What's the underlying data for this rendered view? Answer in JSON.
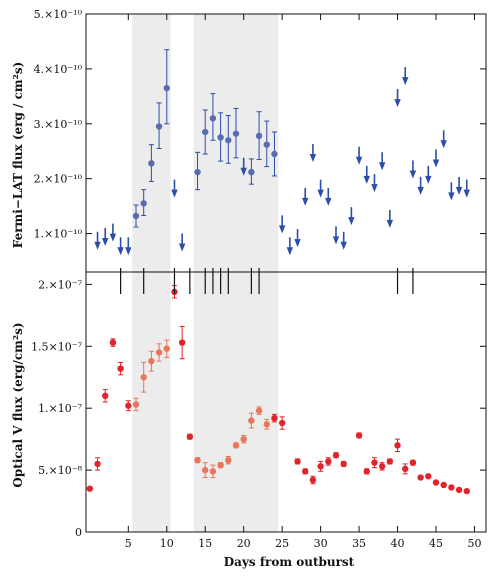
{
  "chart_data": [
    {
      "type": "scatter",
      "panel": "top",
      "ylabel": "Fermi−LAT flux (erg / cm²s)",
      "ylim": [
        3e-11,
        5e-10
      ],
      "xlim": [
        -0.5,
        51.5
      ],
      "yticks": [
        {
          "value": 1e-10,
          "label": "1.×10⁻¹⁰"
        },
        {
          "value": 2e-10,
          "label": "2.×10⁻¹⁰"
        },
        {
          "value": 3e-10,
          "label": "3.×10⁻¹⁰"
        },
        {
          "value": 4e-10,
          "label": "4.×10⁻¹⁰"
        },
        {
          "value": 5e-10,
          "label": "5.×10⁻¹⁰"
        }
      ],
      "shaded_regions": [
        [
          5.5,
          10.5
        ],
        [
          13.5,
          24.5
        ]
      ],
      "colors": {
        "points": "#5a6cb0",
        "upper_limits": "#2b4ea8",
        "shade": "#ececec"
      },
      "series": [
        {
          "kind": "detections",
          "points": [
            {
              "x": 6,
              "y": 1.32e-10,
              "lo": 1.12e-10,
              "hi": 1.52e-10
            },
            {
              "x": 7,
              "y": 1.55e-10,
              "lo": 1.33e-10,
              "hi": 1.8e-10
            },
            {
              "x": 8,
              "y": 2.28e-10,
              "lo": 1.95e-10,
              "hi": 2.62e-10
            },
            {
              "x": 9,
              "y": 2.95e-10,
              "lo": 2.55e-10,
              "hi": 3.38e-10
            },
            {
              "x": 10,
              "y": 3.65e-10,
              "lo": 3e-10,
              "hi": 4.35e-10
            },
            {
              "x": 14,
              "y": 2.12e-10,
              "lo": 1.8e-10,
              "hi": 2.48e-10
            },
            {
              "x": 15,
              "y": 2.85e-10,
              "lo": 2.45e-10,
              "hi": 3.25e-10
            },
            {
              "x": 16,
              "y": 3.1e-10,
              "lo": 2.7e-10,
              "hi": 3.55e-10
            },
            {
              "x": 17,
              "y": 2.75e-10,
              "lo": 2.32e-10,
              "hi": 3.2e-10
            },
            {
              "x": 18,
              "y": 2.7e-10,
              "lo": 2.28e-10,
              "hi": 3.15e-10
            },
            {
              "x": 19,
              "y": 2.82e-10,
              "lo": 2.38e-10,
              "hi": 3.28e-10
            },
            {
              "x": 21,
              "y": 2.12e-10,
              "lo": 1.9e-10,
              "hi": 2.36e-10
            },
            {
              "x": 22,
              "y": 2.78e-10,
              "lo": 2.35e-10,
              "hi": 3.22e-10
            },
            {
              "x": 23,
              "y": 2.62e-10,
              "lo": 2.22e-10,
              "hi": 3.05e-10
            },
            {
              "x": 24,
              "y": 2.45e-10,
              "lo": 2.05e-10,
              "hi": 2.85e-10
            }
          ]
        },
        {
          "kind": "upper_limits",
          "points": [
            {
              "x": 1,
              "y": 8.5e-11
            },
            {
              "x": 2,
              "y": 9.2e-11
            },
            {
              "x": 3,
              "y": 1e-10
            },
            {
              "x": 4,
              "y": 7.5e-11
            },
            {
              "x": 5,
              "y": 7.5e-11
            },
            {
              "x": 11,
              "y": 1.8e-10
            },
            {
              "x": 12,
              "y": 8.2e-11
            },
            {
              "x": 20,
              "y": 2.2e-10
            },
            {
              "x": 25,
              "y": 1.15e-10
            },
            {
              "x": 26,
              "y": 7.5e-11
            },
            {
              "x": 27,
              "y": 9e-11
            },
            {
              "x": 28,
              "y": 1.65e-10
            },
            {
              "x": 29,
              "y": 2.45e-10
            },
            {
              "x": 30,
              "y": 1.8e-10
            },
            {
              "x": 31,
              "y": 1.65e-10
            },
            {
              "x": 32,
              "y": 9.5e-11
            },
            {
              "x": 33,
              "y": 8.5e-11
            },
            {
              "x": 34,
              "y": 1.3e-10
            },
            {
              "x": 35,
              "y": 2.4e-10
            },
            {
              "x": 36,
              "y": 2.05e-10
            },
            {
              "x": 37,
              "y": 1.9e-10
            },
            {
              "x": 38,
              "y": 2.3e-10
            },
            {
              "x": 39,
              "y": 1.25e-10
            },
            {
              "x": 40,
              "y": 3.45e-10
            },
            {
              "x": 41,
              "y": 3.85e-10
            },
            {
              "x": 42,
              "y": 2.15e-10
            },
            {
              "x": 43,
              "y": 1.85e-10
            },
            {
              "x": 44,
              "y": 2.05e-10
            },
            {
              "x": 45,
              "y": 2.35e-10
            },
            {
              "x": 46,
              "y": 2.7e-10
            },
            {
              "x": 47,
              "y": 1.75e-10
            },
            {
              "x": 48,
              "y": 1.85e-10
            },
            {
              "x": 49,
              "y": 1.8e-10
            }
          ]
        }
      ],
      "event_markers_x": [
        4,
        7,
        11,
        13,
        15,
        16,
        17,
        18,
        21,
        22,
        40,
        42
      ]
    },
    {
      "type": "scatter",
      "panel": "bottom",
      "xlabel": "Days from outburst",
      "ylabel": "Optical V flux (erg/cm²s)",
      "ylim": [
        0,
        2.1e-07
      ],
      "xlim": [
        -0.5,
        51.5
      ],
      "xticks": [
        "5",
        "10",
        "15",
        "20",
        "25",
        "30",
        "35",
        "40",
        "45",
        "50"
      ],
      "yticks": [
        {
          "value": 0,
          "label": "0"
        },
        {
          "value": 5e-08,
          "label": "5.×10⁻⁸"
        },
        {
          "value": 1e-07,
          "label": "1.×10⁻⁷"
        },
        {
          "value": 1.5e-07,
          "label": "1.5×10⁻⁷"
        },
        {
          "value": 2e-07,
          "label": "2.×10⁻⁷"
        }
      ],
      "colors": {
        "main": "#e0242a",
        "highlight": "#e8775a"
      },
      "series": [
        {
          "kind": "main",
          "points": [
            {
              "x": 0,
              "y": 3.5e-08,
              "e": 1e-09
            },
            {
              "x": 1,
              "y": 5.5e-08,
              "e": 5e-09
            },
            {
              "x": 2,
              "y": 1.1e-07,
              "e": 5e-09
            },
            {
              "x": 3,
              "y": 1.53e-07,
              "e": 3e-09
            },
            {
              "x": 4,
              "y": 1.32e-07,
              "e": 5e-09
            },
            {
              "x": 5,
              "y": 1.02e-07,
              "e": 4e-09
            },
            {
              "x": 11,
              "y": 1.94e-07,
              "e": 5e-09
            },
            {
              "x": 12,
              "y": 1.53e-07,
              "e": 1.3e-08
            },
            {
              "x": 13,
              "y": 7.7e-08,
              "e": 2e-09
            },
            {
              "x": 24,
              "y": 9.2e-08,
              "e": 3e-09
            },
            {
              "x": 25,
              "y": 8.8e-08,
              "e": 5e-09
            },
            {
              "x": 27,
              "y": 5.7e-08,
              "e": 2e-09
            },
            {
              "x": 28,
              "y": 4.9e-08,
              "e": 2e-09
            },
            {
              "x": 29,
              "y": 4.2e-08,
              "e": 3e-09
            },
            {
              "x": 30,
              "y": 5.3e-08,
              "e": 4e-09
            },
            {
              "x": 31,
              "y": 5.7e-08,
              "e": 3e-09
            },
            {
              "x": 32,
              "y": 6.2e-08,
              "e": 2e-09
            },
            {
              "x": 33,
              "y": 5.5e-08,
              "e": 2e-09
            },
            {
              "x": 35,
              "y": 7.8e-08,
              "e": 2e-09
            },
            {
              "x": 36,
              "y": 4.9e-08,
              "e": 2e-09
            },
            {
              "x": 37,
              "y": 5.6e-08,
              "e": 4e-09
            },
            {
              "x": 38,
              "y": 5.3e-08,
              "e": 3e-09
            },
            {
              "x": 39,
              "y": 5.7e-08,
              "e": 2e-09
            },
            {
              "x": 40,
              "y": 7e-08,
              "e": 5e-09
            },
            {
              "x": 41,
              "y": 5.1e-08,
              "e": 4e-09
            },
            {
              "x": 42,
              "y": 5.6e-08,
              "e": 2e-09
            },
            {
              "x": 43,
              "y": 4.4e-08,
              "e": 1e-09
            },
            {
              "x": 44,
              "y": 4.5e-08,
              "e": 1e-09
            },
            {
              "x": 45,
              "y": 4e-08,
              "e": 1e-09
            },
            {
              "x": 46,
              "y": 3.8e-08,
              "e": 1e-09
            },
            {
              "x": 47,
              "y": 3.6e-08,
              "e": 1e-09
            },
            {
              "x": 48,
              "y": 3.4e-08,
              "e": 1e-09
            },
            {
              "x": 49,
              "y": 3.3e-08,
              "e": 1e-09
            }
          ]
        },
        {
          "kind": "highlight",
          "points": [
            {
              "x": 6,
              "y": 1.03e-07,
              "e": 5e-09
            },
            {
              "x": 7,
              "y": 1.25e-07,
              "e": 1.2e-08
            },
            {
              "x": 8,
              "y": 1.38e-07,
              "e": 8e-09
            },
            {
              "x": 9,
              "y": 1.45e-07,
              "e": 7e-09
            },
            {
              "x": 10,
              "y": 1.48e-07,
              "e": 7e-09
            },
            {
              "x": 14,
              "y": 5.8e-08,
              "e": 2e-09
            },
            {
              "x": 15,
              "y": 5e-08,
              "e": 6e-09
            },
            {
              "x": 16,
              "y": 4.9e-08,
              "e": 5e-09
            },
            {
              "x": 17,
              "y": 5.4e-08,
              "e": 2e-09
            },
            {
              "x": 18,
              "y": 5.8e-08,
              "e": 3e-09
            },
            {
              "x": 19,
              "y": 7e-08,
              "e": 2e-09
            },
            {
              "x": 20,
              "y": 7.5e-08,
              "e": 3e-09
            },
            {
              "x": 21,
              "y": 9e-08,
              "e": 6e-09
            },
            {
              "x": 22,
              "y": 9.8e-08,
              "e": 3e-09
            },
            {
              "x": 23,
              "y": 8.7e-08,
              "e": 4e-09
            }
          ]
        }
      ]
    }
  ]
}
